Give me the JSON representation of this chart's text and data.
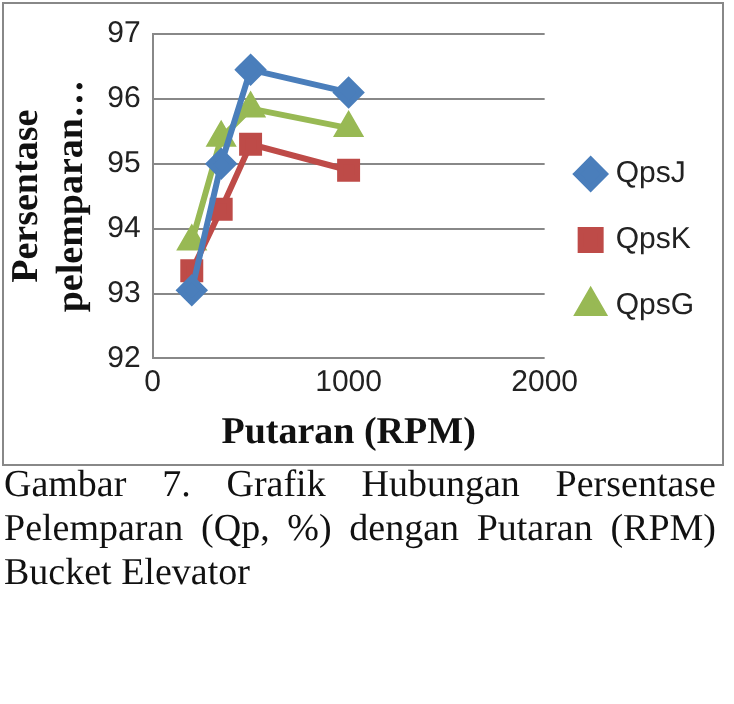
{
  "chart_data": {
    "type": "line",
    "xlabel": "Putaran (RPM)",
    "ylabel": "Persentase pelemparan…",
    "x": [
      200,
      350,
      500,
      1000
    ],
    "series": [
      {
        "name": "QpsJ",
        "color": "#4a7ebb",
        "marker": "diamond",
        "values": [
          93.05,
          95.0,
          96.45,
          96.1
        ]
      },
      {
        "name": "QpsK",
        "color": "#be4b48",
        "marker": "square",
        "values": [
          93.35,
          94.3,
          95.3,
          94.9
        ]
      },
      {
        "name": "QpsG",
        "color": "#98b954",
        "marker": "triangle",
        "values": [
          93.8,
          95.4,
          95.85,
          95.55
        ]
      }
    ],
    "xlim": [
      0,
      2000
    ],
    "xticks": [
      0,
      1000,
      2000
    ],
    "ylim": [
      92,
      97
    ],
    "yticks": [
      92,
      93,
      94,
      95,
      96,
      97
    ],
    "grid": "y",
    "legend": "right",
    "annotations": [
      "Gambar 7. Grafik Hubungan Persentase Pelemparan (Qp, %) dengan Putaran (RPM) Bucket Elevator"
    ]
  }
}
